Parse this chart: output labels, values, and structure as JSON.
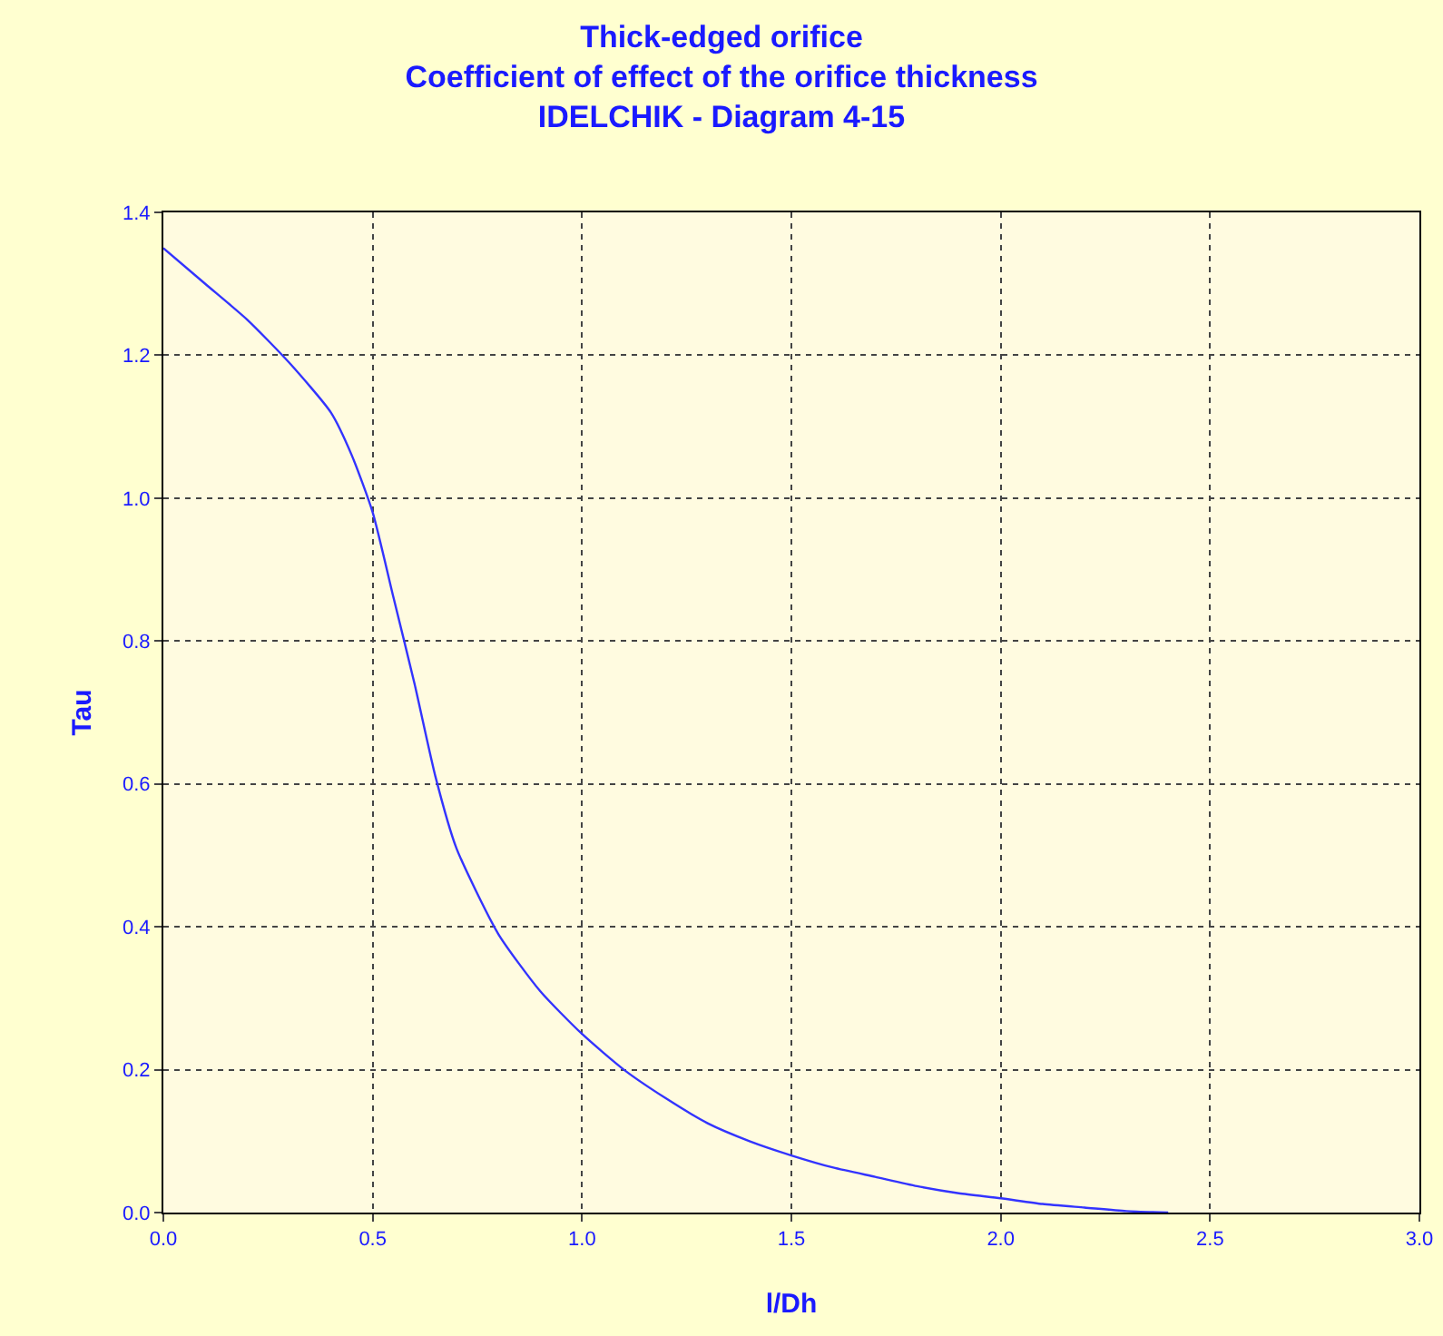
{
  "chart_data": {
    "type": "line",
    "title": "Thick-edged orifice\nCoefficient of effect of the orifice thickness\nIDELCHIK - Diagram 4-15",
    "xlabel": "l/Dh",
    "ylabel": "Tau",
    "x": [
      0,
      0.1,
      0.2,
      0.3,
      0.4,
      0.45,
      0.5,
      0.55,
      0.6,
      0.65,
      0.7,
      0.8,
      0.9,
      1.0,
      1.1,
      1.2,
      1.3,
      1.4,
      1.5,
      1.6,
      1.7,
      1.8,
      1.9,
      2.0,
      2.1,
      2.2,
      2.3,
      2.4
    ],
    "series": [
      {
        "color": "#3333ff",
        "values": [
          1.35,
          1.3,
          1.25,
          1.19,
          1.12,
          1.06,
          0.98,
          0.86,
          0.74,
          0.61,
          0.51,
          0.39,
          0.31,
          0.25,
          0.2,
          0.16,
          0.125,
          0.1,
          0.08,
          0.063,
          0.05,
          0.037,
          0.027,
          0.02,
          0.012,
          0.007,
          0.002,
          0
        ]
      }
    ],
    "xlim": [
      0,
      3
    ],
    "xticks": [
      {
        "value": 0,
        "label": "0.0"
      },
      {
        "value": 0.5,
        "label": "0.5"
      },
      {
        "value": 1,
        "label": "1.0"
      },
      {
        "value": 1.5,
        "label": "1.5"
      },
      {
        "value": 2,
        "label": "2.0"
      },
      {
        "value": 2.5,
        "label": "2.5"
      },
      {
        "value": 3,
        "label": "3.0"
      }
    ],
    "ylim": [
      0,
      1.4
    ],
    "yticks": [
      {
        "value": 0,
        "label": "0.0"
      },
      {
        "value": 0.2,
        "label": "0.2"
      },
      {
        "value": 0.4,
        "label": "0.4"
      },
      {
        "value": 0.6,
        "label": "0.6"
      },
      {
        "value": 0.8,
        "label": "0.8"
      },
      {
        "value": 1,
        "label": "1.0"
      },
      {
        "value": 1.2,
        "label": "1.2"
      },
      {
        "value": 1.4,
        "label": "1.4"
      }
    ],
    "grid": true,
    "marker": "none",
    "line_style": "solid"
  }
}
